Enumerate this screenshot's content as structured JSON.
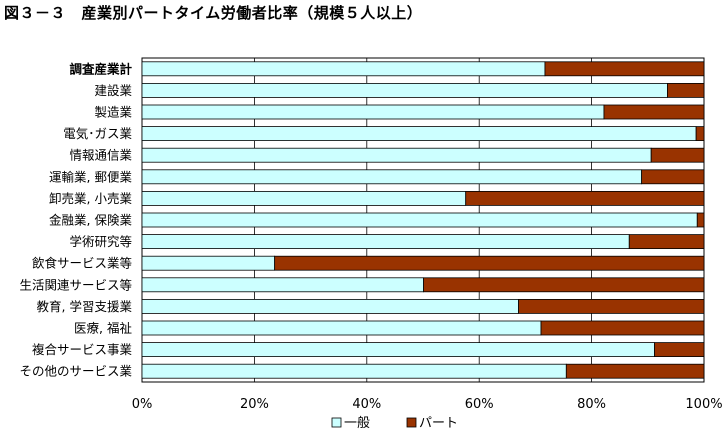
{
  "title": "図３－３　産業別パートタイム労働者比率（規模５人以上）",
  "chart_data": {
    "type": "bar",
    "orientation": "horizontal",
    "stacked": "percent",
    "categories": [
      "調査産業計",
      "建設業",
      "製造業",
      "電気･ガス業",
      "情報通信業",
      "運輸業, 郵便業",
      "卸売業, 小売業",
      "金融業, 保険業",
      "学術研究等",
      "飲食サービス業等",
      "生活関連サービス等",
      "教育, 学習支援業",
      "医療, 福祉",
      "複合サービス事業",
      "その他のサービス業"
    ],
    "bold_categories": [
      "調査産業計"
    ],
    "series": [
      {
        "name": "一般",
        "color": "#ccffff",
        "values": [
          71.7,
          93.5,
          82.2,
          98.6,
          90.6,
          88.9,
          57.6,
          98.8,
          86.7,
          23.6,
          50.1,
          67.0,
          71.0,
          91.2,
          75.5
        ]
      },
      {
        "name": "パート",
        "color": "#993300",
        "values": [
          28.3,
          6.5,
          17.8,
          1.4,
          9.4,
          11.1,
          42.4,
          1.2,
          13.3,
          76.4,
          49.9,
          33.0,
          29.0,
          8.8,
          24.5
        ]
      }
    ],
    "xlim": [
      0,
      100
    ],
    "x_ticks": [
      "0%",
      "20%",
      "40%",
      "60%",
      "80%",
      "100%"
    ],
    "grid": true,
    "legend": "bottom"
  }
}
